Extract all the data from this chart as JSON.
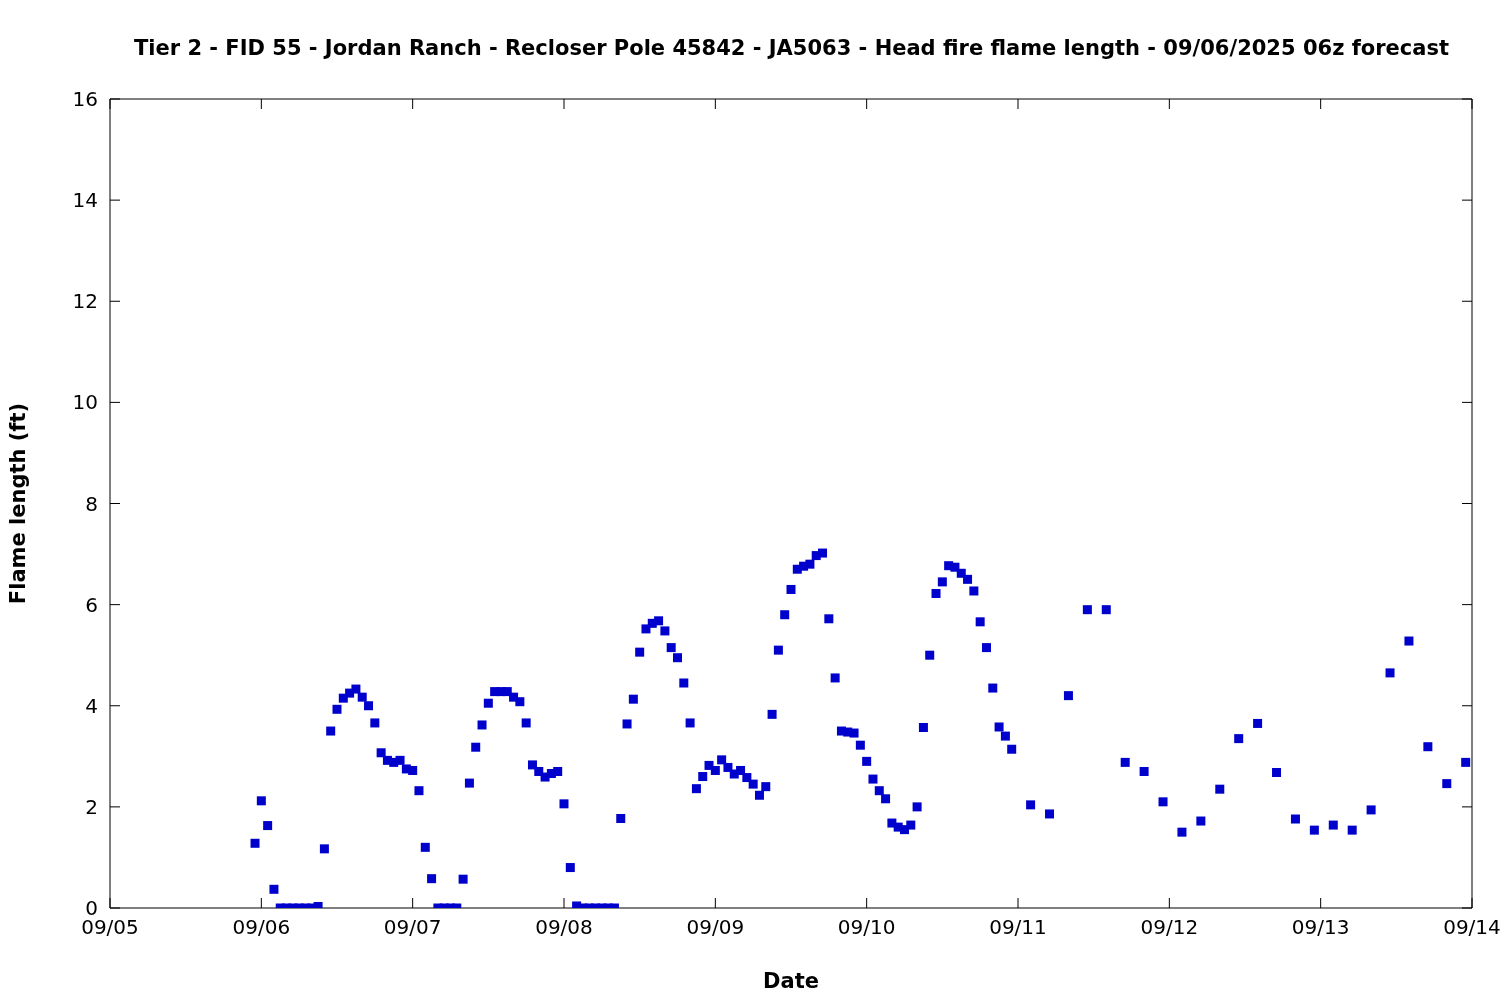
{
  "chart_data": {
    "type": "scatter",
    "title": "Tier 2 - FID 55 - Jordan Ranch - Recloser Pole 45842 - JA5063 - Head fire flame length - 09/06/2025 06z forecast",
    "xlabel": "Date",
    "ylabel": "Flame length (ft)",
    "xlim": [
      "2025-09-05",
      "2025-09-14"
    ],
    "xticks": [
      {
        "value": "2025-09-05",
        "label": "09/05"
      },
      {
        "value": "2025-09-06",
        "label": "09/06"
      },
      {
        "value": "2025-09-07",
        "label": "09/07"
      },
      {
        "value": "2025-09-08",
        "label": "09/08"
      },
      {
        "value": "2025-09-09",
        "label": "09/09"
      },
      {
        "value": "2025-09-10",
        "label": "09/10"
      },
      {
        "value": "2025-09-11",
        "label": "09/11"
      },
      {
        "value": "2025-09-12",
        "label": "09/12"
      },
      {
        "value": "2025-09-13",
        "label": "09/13"
      },
      {
        "value": "2025-09-14",
        "label": "09/14"
      }
    ],
    "ylim": [
      0,
      16
    ],
    "yticks": [
      0,
      2,
      4,
      6,
      8,
      10,
      12,
      14,
      16
    ],
    "grid": false,
    "legend": false,
    "marker": "square",
    "series": [
      {
        "color": "#0000cc",
        "x": [
          "2025-09-05T23:00",
          "2025-09-06T00:00",
          "2025-09-06T01:00",
          "2025-09-06T02:00",
          "2025-09-06T03:00",
          "2025-09-06T04:00",
          "2025-09-06T05:00",
          "2025-09-06T06:00",
          "2025-09-06T07:00",
          "2025-09-06T08:00",
          "2025-09-06T09:00",
          "2025-09-06T10:00",
          "2025-09-06T11:00",
          "2025-09-06T12:00",
          "2025-09-06T13:00",
          "2025-09-06T14:00",
          "2025-09-06T15:00",
          "2025-09-06T16:00",
          "2025-09-06T17:00",
          "2025-09-06T18:00",
          "2025-09-06T19:00",
          "2025-09-06T20:00",
          "2025-09-06T21:00",
          "2025-09-06T22:00",
          "2025-09-06T23:00",
          "2025-09-07T00:00",
          "2025-09-07T01:00",
          "2025-09-07T02:00",
          "2025-09-07T03:00",
          "2025-09-07T04:00",
          "2025-09-07T05:00",
          "2025-09-07T06:00",
          "2025-09-07T07:00",
          "2025-09-07T08:00",
          "2025-09-07T09:00",
          "2025-09-07T10:00",
          "2025-09-07T11:00",
          "2025-09-07T12:00",
          "2025-09-07T13:00",
          "2025-09-07T14:00",
          "2025-09-07T15:00",
          "2025-09-07T16:00",
          "2025-09-07T17:00",
          "2025-09-07T18:00",
          "2025-09-07T19:00",
          "2025-09-07T20:00",
          "2025-09-07T21:00",
          "2025-09-07T22:00",
          "2025-09-07T23:00",
          "2025-09-08T00:00",
          "2025-09-08T01:00",
          "2025-09-08T02:00",
          "2025-09-08T03:00",
          "2025-09-08T04:00",
          "2025-09-08T05:00",
          "2025-09-08T06:00",
          "2025-09-08T07:00",
          "2025-09-08T08:00",
          "2025-09-08T09:00",
          "2025-09-08T10:00",
          "2025-09-08T11:00",
          "2025-09-08T12:00",
          "2025-09-08T13:00",
          "2025-09-08T14:00",
          "2025-09-08T15:00",
          "2025-09-08T16:00",
          "2025-09-08T17:00",
          "2025-09-08T18:00",
          "2025-09-08T19:00",
          "2025-09-08T20:00",
          "2025-09-08T21:00",
          "2025-09-08T22:00",
          "2025-09-08T23:00",
          "2025-09-09T00:00",
          "2025-09-09T01:00",
          "2025-09-09T02:00",
          "2025-09-09T03:00",
          "2025-09-09T04:00",
          "2025-09-09T05:00",
          "2025-09-09T06:00",
          "2025-09-09T07:00",
          "2025-09-09T08:00",
          "2025-09-09T09:00",
          "2025-09-09T10:00",
          "2025-09-09T11:00",
          "2025-09-09T12:00",
          "2025-09-09T13:00",
          "2025-09-09T14:00",
          "2025-09-09T15:00",
          "2025-09-09T16:00",
          "2025-09-09T17:00",
          "2025-09-09T18:00",
          "2025-09-09T19:00",
          "2025-09-09T20:00",
          "2025-09-09T21:00",
          "2025-09-09T22:00",
          "2025-09-09T23:00",
          "2025-09-10T00:00",
          "2025-09-10T01:00",
          "2025-09-10T02:00",
          "2025-09-10T03:00",
          "2025-09-10T04:00",
          "2025-09-10T05:00",
          "2025-09-10T06:00",
          "2025-09-10T07:00",
          "2025-09-10T08:00",
          "2025-09-10T09:00",
          "2025-09-10T10:00",
          "2025-09-10T11:00",
          "2025-09-10T12:00",
          "2025-09-10T13:00",
          "2025-09-10T14:00",
          "2025-09-10T15:00",
          "2025-09-10T16:00",
          "2025-09-10T17:00",
          "2025-09-10T18:00",
          "2025-09-10T19:00",
          "2025-09-10T20:00",
          "2025-09-10T21:00",
          "2025-09-10T22:00",
          "2025-09-10T23:00",
          "2025-09-11T02:00",
          "2025-09-11T05:00",
          "2025-09-11T08:00",
          "2025-09-11T11:00",
          "2025-09-11T14:00",
          "2025-09-11T17:00",
          "2025-09-11T20:00",
          "2025-09-11T23:00",
          "2025-09-12T02:00",
          "2025-09-12T05:00",
          "2025-09-12T08:00",
          "2025-09-12T11:00",
          "2025-09-12T14:00",
          "2025-09-12T17:00",
          "2025-09-12T20:00",
          "2025-09-12T23:00",
          "2025-09-13T02:00",
          "2025-09-13T05:00",
          "2025-09-13T08:00",
          "2025-09-13T11:00",
          "2025-09-13T14:00",
          "2025-09-13T17:00",
          "2025-09-13T20:00",
          "2025-09-13T23:00"
        ],
        "values": [
          1.28,
          2.12,
          1.63,
          0.37,
          0,
          0,
          0,
          0,
          0,
          0,
          0.03,
          1.17,
          3.5,
          3.93,
          4.15,
          4.25,
          4.33,
          4.17,
          4.0,
          3.66,
          3.07,
          2.92,
          2.88,
          2.92,
          2.75,
          2.72,
          2.32,
          1.2,
          0.58,
          0,
          0,
          0,
          0,
          0.57,
          2.47,
          3.18,
          3.62,
          4.05,
          4.28,
          4.28,
          4.28,
          4.17,
          4.08,
          3.66,
          2.83,
          2.7,
          2.59,
          2.66,
          2.7,
          2.06,
          0.8,
          0.04,
          0,
          0,
          0,
          0,
          0,
          0,
          1.77,
          3.64,
          4.13,
          5.06,
          5.52,
          5.63,
          5.68,
          5.48,
          5.15,
          4.95,
          4.45,
          3.66,
          2.36,
          2.6,
          2.82,
          2.72,
          2.93,
          2.78,
          2.65,
          2.72,
          2.58,
          2.45,
          2.23,
          2.4,
          3.83,
          5.1,
          5.8,
          6.3,
          6.7,
          6.76,
          6.8,
          6.97,
          7.02,
          5.72,
          4.55,
          3.5,
          3.48,
          3.46,
          3.22,
          2.9,
          2.55,
          2.32,
          2.16,
          1.68,
          1.6,
          1.55,
          1.64,
          2.0,
          3.57,
          5.0,
          6.22,
          6.45,
          6.77,
          6.74,
          6.62,
          6.5,
          6.27,
          5.66,
          5.15,
          4.35,
          3.58,
          3.4,
          3.14,
          2.04,
          1.86,
          4.2,
          5.9,
          5.9,
          2.88,
          2.7,
          2.1,
          1.5,
          1.72,
          2.35,
          3.35,
          3.65,
          2.68,
          1.76,
          1.54,
          1.64,
          1.54,
          1.94,
          4.65,
          5.28,
          3.19,
          2.46,
          2.88
        ]
      }
    ]
  }
}
